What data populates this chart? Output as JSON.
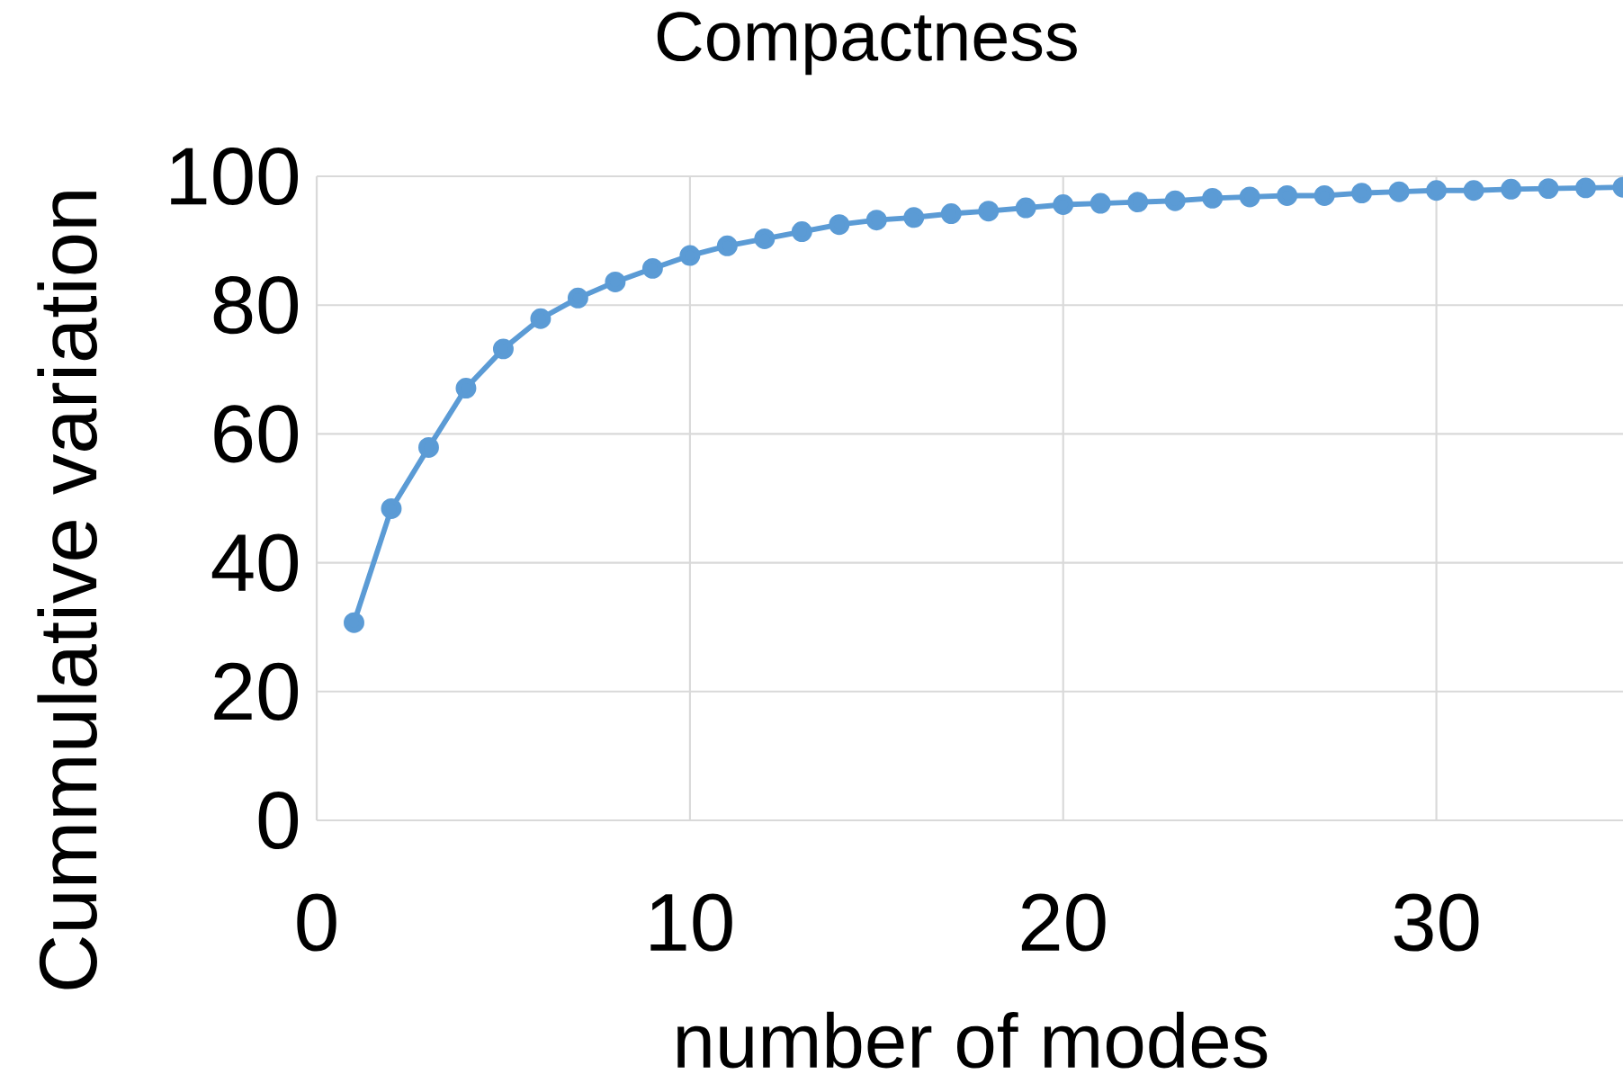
{
  "chart_data": {
    "type": "line",
    "title": "Compactness",
    "xlabel": "number of modes",
    "ylabel": "Cummulative variation",
    "x": [
      1,
      2,
      3,
      4,
      5,
      6,
      7,
      8,
      9,
      10,
      11,
      12,
      13,
      14,
      15,
      16,
      17,
      18,
      19,
      20,
      21,
      22,
      23,
      24,
      25,
      26,
      27,
      28,
      29,
      30,
      31,
      32,
      33,
      34,
      35
    ],
    "series": [
      {
        "color": "#5b9bd5",
        "values": [
          30.7,
          48.4,
          57.9,
          67.1,
          73.2,
          77.9,
          81.1,
          83.6,
          85.7,
          87.7,
          89.2,
          90.3,
          91.4,
          92.5,
          93.2,
          93.6,
          94.2,
          94.6,
          95.1,
          95.6,
          95.8,
          96.0,
          96.2,
          96.6,
          96.8,
          97.0,
          97.0,
          97.4,
          97.6,
          97.8,
          97.8,
          98.0,
          98.1,
          98.2,
          98.3
        ]
      }
    ],
    "xlim": [
      0,
      35
    ],
    "ylim": [
      0,
      100
    ],
    "xticks": [
      0,
      10,
      20,
      30
    ],
    "yticks": [
      0,
      20,
      40,
      60,
      80,
      100
    ],
    "grid": true,
    "marker": "circle",
    "line_style": "solid"
  }
}
